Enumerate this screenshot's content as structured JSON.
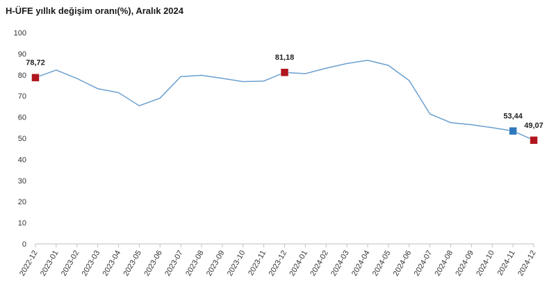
{
  "chart_data": {
    "type": "line",
    "title": "H-ÜFE yıllık değişim oranı(%), Aralık 2024",
    "xlabel": "",
    "ylabel": "",
    "ylim": [
      0,
      100
    ],
    "yticks": [
      0,
      10,
      20,
      30,
      40,
      50,
      60,
      70,
      80,
      90,
      100
    ],
    "grid": false,
    "x": [
      "2022-12",
      "2023-01",
      "2023-02",
      "2023-03",
      "2023-04",
      "2023-05",
      "2023-06",
      "2023-07",
      "2023-08",
      "2023-09",
      "2023-10",
      "2023-11",
      "2023-12",
      "2024-01",
      "2024-02",
      "2024-03",
      "2024-04",
      "2024-05",
      "2024-06",
      "2024-07",
      "2024-08",
      "2024-09",
      "2024-10",
      "2024-11",
      "2024-12"
    ],
    "series": [
      {
        "color": "#6a9fcf",
        "values": [
          78.72,
          82.3,
          78.3,
          73.5,
          71.6,
          65.4,
          69.0,
          79.2,
          79.8,
          78.4,
          76.8,
          77.1,
          81.18,
          80.6,
          83.2,
          85.4,
          86.9,
          84.5,
          77.3,
          61.5,
          57.4,
          56.4,
          55.0,
          53.44,
          49.07
        ]
      }
    ],
    "markers": [
      {
        "index": 0,
        "label": "78,72",
        "color": "#b0161e"
      },
      {
        "index": 12,
        "label": "81,18",
        "color": "#b0161e"
      },
      {
        "index": 23,
        "label": "53,44",
        "color": "#2e78be"
      },
      {
        "index": 24,
        "label": "49,07",
        "color": "#b0161e"
      }
    ]
  }
}
